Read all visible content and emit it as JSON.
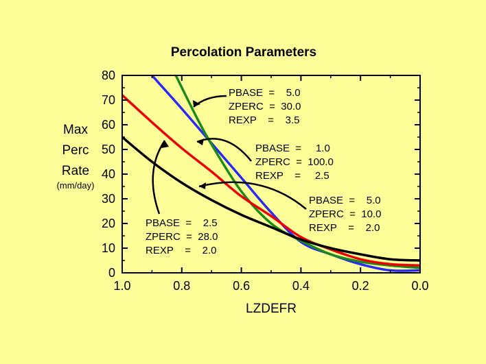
{
  "chart_data": {
    "type": "line",
    "title": "Percolation Parameters",
    "xlabel": "LZDEFR",
    "ylabel_lines": [
      "Max",
      "Perc",
      "Rate"
    ],
    "ylabel_units": "(mm/day)",
    "xlim": [
      1.0,
      0.0
    ],
    "ylim": [
      0,
      80
    ],
    "x_ticks": [
      "1.0",
      "0.8",
      "0.6",
      "0.4",
      "0.2",
      "0.0"
    ],
    "x_tick_values": [
      1.0,
      0.8,
      0.6,
      0.4,
      0.2,
      0.0
    ],
    "y_ticks": [
      "0",
      "10",
      "20",
      "30",
      "40",
      "50",
      "60",
      "70",
      "80"
    ],
    "y_tick_values": [
      0,
      10,
      20,
      30,
      40,
      50,
      60,
      70,
      80
    ],
    "grid": false,
    "series": [
      {
        "color": "#2a2af5",
        "x": [
          0.9,
          0.8,
          0.7,
          0.6,
          0.5,
          0.4,
          0.3,
          0.2,
          0.1,
          0.0
        ],
        "values": [
          80.0,
          66.5,
          52.5,
          38.5,
          24.5,
          12.5,
          7.5,
          3.5,
          1.0,
          1.0
        ]
      },
      {
        "color": "#1a8a1a",
        "x": [
          0.82,
          0.75,
          0.7,
          0.6,
          0.5,
          0.4,
          0.3,
          0.2,
          0.1,
          0.0
        ],
        "values": [
          80.0,
          63.0,
          52.0,
          33.0,
          20.0,
          13.0,
          7.5,
          4.5,
          3.0,
          2.0
        ]
      },
      {
        "color": "#ee0000",
        "x": [
          1.0,
          0.9,
          0.8,
          0.7,
          0.6,
          0.5,
          0.4,
          0.3,
          0.2,
          0.1,
          0.0
        ],
        "values": [
          72.0,
          61.0,
          50.5,
          41.0,
          31.0,
          23.0,
          14.5,
          9.5,
          5.5,
          3.5,
          3.0
        ]
      },
      {
        "color": "#000000",
        "x": [
          1.0,
          0.9,
          0.8,
          0.7,
          0.6,
          0.5,
          0.4,
          0.3,
          0.2,
          0.1,
          0.0
        ],
        "values": [
          55.0,
          45.0,
          36.5,
          29.5,
          23.5,
          18.5,
          13.5,
          10.0,
          7.5,
          5.5,
          5.0
        ]
      }
    ],
    "annotations": [
      {
        "lines": [
          "PBASE  =    5.0",
          "ZPERC  =  30.0",
          "REXP    =    3.5"
        ],
        "color": "#000000"
      },
      {
        "lines": [
          "PBASE  =     1.0",
          "ZPERC  =  100.0",
          "REXP    =     2.5"
        ],
        "color": "#000000"
      },
      {
        "lines": [
          "PBASE  =    5.0",
          "ZPERC  =  10.0",
          "REXP    =    2.0"
        ],
        "color": "#000000"
      },
      {
        "lines": [
          "PBASE  =    2.5",
          "ZPERC  =  28.0",
          "REXP    =    2.0"
        ],
        "color": "#000000"
      }
    ]
  }
}
